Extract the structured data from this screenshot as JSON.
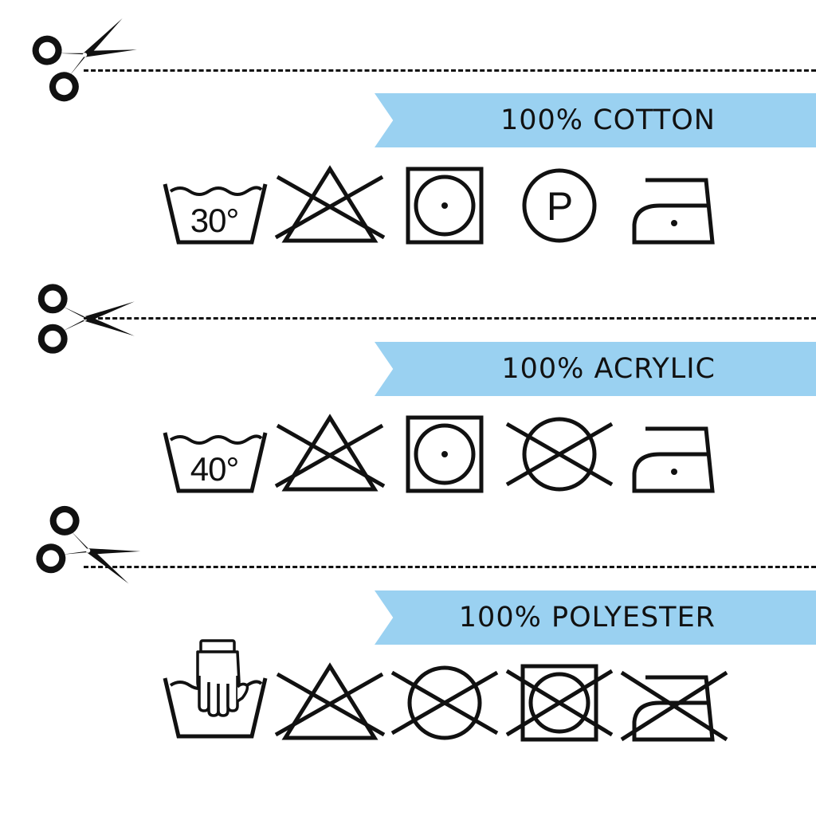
{
  "accent_color": "#9ad1f1",
  "ink_color": "#111111",
  "labels": [
    {
      "title": "100% COTTON",
      "symbols": [
        {
          "icon": "wash-30-icon",
          "text": "30°"
        },
        {
          "icon": "do-not-bleach-icon"
        },
        {
          "icon": "tumble-dry-low-icon"
        },
        {
          "icon": "dry-clean-p-icon",
          "text": "P"
        },
        {
          "icon": "iron-low-icon"
        }
      ]
    },
    {
      "title": "100% ACRYLIC",
      "symbols": [
        {
          "icon": "wash-40-icon",
          "text": "40°"
        },
        {
          "icon": "do-not-bleach-icon"
        },
        {
          "icon": "tumble-dry-low-icon"
        },
        {
          "icon": "do-not-dry-clean-icon"
        },
        {
          "icon": "iron-low-icon"
        }
      ]
    },
    {
      "title": "100% POLYESTER",
      "symbols": [
        {
          "icon": "hand-wash-icon"
        },
        {
          "icon": "do-not-bleach-icon"
        },
        {
          "icon": "do-not-dry-clean-icon"
        },
        {
          "icon": "do-not-tumble-dry-icon"
        },
        {
          "icon": "do-not-iron-icon"
        }
      ]
    }
  ]
}
